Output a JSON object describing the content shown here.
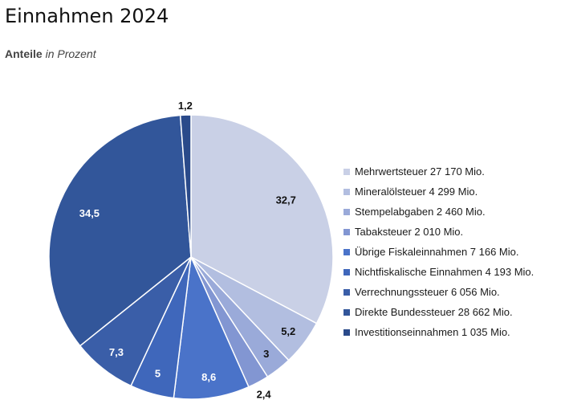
{
  "header": {
    "title": "Einnahmen 2024",
    "subtitle_bold": "Anteile",
    "subtitle_italic": "in Prozent"
  },
  "chart_data": {
    "type": "pie",
    "title": "Einnahmen 2024",
    "subtitle": "Anteile in Prozent",
    "legend_position": "right",
    "slices": [
      {
        "label": "Mehrwertsteuer 27 170 Mio.",
        "value": 32.7,
        "value_label": "32,7",
        "color": "#c9d0e6",
        "label_color": "#111111"
      },
      {
        "label": "Mineralölsteuer 4 299 Mio.",
        "value": 5.2,
        "value_label": "5,2",
        "color": "#b2bee0",
        "label_color": "#111111"
      },
      {
        "label": "Stempelabgaben 2 460 Mio.",
        "value": 3,
        "value_label": "3",
        "color": "#9aaad9",
        "label_color": "#111111"
      },
      {
        "label": "Tabaksteuer 2 010 Mio.",
        "value": 2.4,
        "value_label": "2,4",
        "color": "#8296d2",
        "label_color": "#111111"
      },
      {
        "label": "Übrige Fiskaleinnahmen 7 166 Mio.",
        "value": 8.6,
        "value_label": "8,6",
        "color": "#4a73c9",
        "label_color": "#ffffff"
      },
      {
        "label": "Nichtfiskalische Einnahmen 4 193 Mio.",
        "value": 5,
        "value_label": "5",
        "color": "#3f67bb",
        "label_color": "#ffffff"
      },
      {
        "label": "Verrechnungssteuer 6 056 Mio.",
        "value": 7.3,
        "value_label": "7,3",
        "color": "#3a5ea8",
        "label_color": "#ffffff"
      },
      {
        "label": "Direkte Bundessteuer 28 662 Mio.",
        "value": 34.5,
        "value_label": "34,5",
        "color": "#32569a",
        "label_color": "#ffffff"
      },
      {
        "label": "Investitionseinnahmen 1 035 Mio.",
        "value": 1.2,
        "value_label": "1,2",
        "color": "#2a4a8a",
        "label_color": "#111111"
      }
    ]
  }
}
